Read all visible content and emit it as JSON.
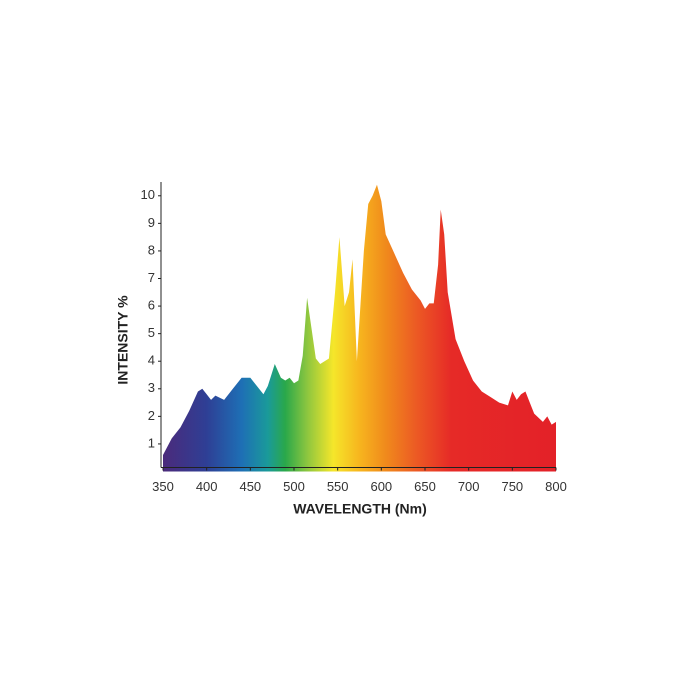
{
  "chart_data": {
    "type": "area",
    "x_label": "WAVELENGTH (Nm)",
    "y_label": "INTENSITY %",
    "x": [
      350,
      360,
      370,
      380,
      390,
      395,
      400,
      405,
      410,
      420,
      430,
      440,
      450,
      460,
      465,
      470,
      478,
      485,
      490,
      495,
      500,
      505,
      510,
      515,
      520,
      525,
      530,
      540,
      547,
      552,
      558,
      563,
      567,
      572,
      576,
      580,
      585,
      590,
      595,
      600,
      605,
      615,
      625,
      635,
      645,
      650,
      655,
      660,
      665,
      668,
      672,
      676,
      685,
      695,
      705,
      715,
      725,
      735,
      745,
      750,
      755,
      760,
      765,
      770,
      775,
      785,
      790,
      795,
      800
    ],
    "values": [
      0.6,
      1.2,
      1.6,
      2.2,
      2.9,
      3.0,
      2.8,
      2.6,
      2.75,
      2.6,
      3.0,
      3.4,
      3.4,
      3.0,
      2.8,
      3.1,
      3.9,
      3.4,
      3.3,
      3.4,
      3.2,
      3.3,
      4.2,
      6.3,
      5.2,
      4.1,
      3.9,
      4.1,
      6.5,
      8.5,
      6.0,
      6.5,
      7.7,
      4.0,
      6.0,
      8.0,
      9.7,
      10.0,
      10.4,
      9.8,
      8.6,
      7.9,
      7.2,
      6.6,
      6.2,
      5.9,
      6.1,
      6.1,
      7.5,
      9.5,
      8.6,
      6.5,
      4.8,
      4.0,
      3.3,
      2.9,
      2.7,
      2.5,
      2.4,
      2.9,
      2.6,
      2.8,
      2.9,
      2.5,
      2.1,
      1.8,
      2.0,
      1.7,
      1.8
    ],
    "gradient": [
      {
        "x": 350,
        "color": "#4b2a7b"
      },
      {
        "x": 400,
        "color": "#2e3f95"
      },
      {
        "x": 440,
        "color": "#1e6fb5"
      },
      {
        "x": 470,
        "color": "#1a9a9a"
      },
      {
        "x": 490,
        "color": "#2aa84a"
      },
      {
        "x": 515,
        "color": "#8cc63f"
      },
      {
        "x": 545,
        "color": "#f5e62a"
      },
      {
        "x": 575,
        "color": "#f7b51e"
      },
      {
        "x": 605,
        "color": "#f08a1c"
      },
      {
        "x": 640,
        "color": "#ec5a24"
      },
      {
        "x": 680,
        "color": "#e62a27"
      },
      {
        "x": 800,
        "color": "#e32128"
      }
    ],
    "xlim": [
      350,
      800
    ],
    "ylim": [
      0,
      10.5
    ],
    "xticks": [
      350,
      400,
      450,
      500,
      550,
      600,
      650,
      700,
      750,
      800
    ],
    "yticks": [
      1,
      2,
      3,
      4,
      5,
      6,
      7,
      8,
      9,
      10
    ]
  }
}
